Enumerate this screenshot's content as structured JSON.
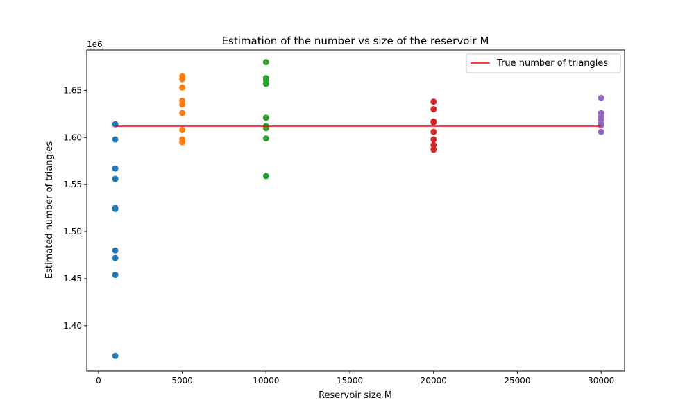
{
  "chart_data": {
    "type": "scatter",
    "title": "Estimation of the number vs size of the reservoir M",
    "xlabel": "Reservoir size M",
    "ylabel": "Estimated number of triangles",
    "y_offset_label": "1e6",
    "xlim": [
      -700,
      31400
    ],
    "ylim": [
      1.352,
      1.693
    ],
    "x_ticks": [
      0,
      5000,
      10000,
      15000,
      20000,
      25000,
      30000
    ],
    "x_tick_labels": [
      "0",
      "5000",
      "10000",
      "15000",
      "20000",
      "25000",
      "30000"
    ],
    "y_ticks": [
      1.4,
      1.45,
      1.5,
      1.55,
      1.6,
      1.65
    ],
    "y_tick_labels": [
      "1.40",
      "1.45",
      "1.50",
      "1.55",
      "1.60",
      "1.65"
    ],
    "grid": false,
    "legend_placement": "top-right",
    "series": [
      {
        "x": 1000,
        "color": "#1f77b4",
        "values": [
          1.614,
          1.598,
          1.567,
          1.556,
          1.525,
          1.524,
          1.48,
          1.472,
          1.454,
          1.368
        ]
      },
      {
        "x": 5000,
        "color": "#ff7f0e",
        "values": [
          1.665,
          1.662,
          1.653,
          1.639,
          1.635,
          1.626,
          1.608,
          1.598,
          1.595
        ]
      },
      {
        "x": 10000,
        "color": "#2ca02c",
        "values": [
          1.68,
          1.663,
          1.661,
          1.657,
          1.621,
          1.612,
          1.61,
          1.599,
          1.559
        ]
      },
      {
        "x": 20000,
        "color": "#d62728",
        "values": [
          1.638,
          1.63,
          1.617,
          1.616,
          1.606,
          1.598,
          1.592,
          1.587
        ]
      },
      {
        "x": 30000,
        "color": "#9467bd",
        "values": [
          1.642,
          1.626,
          1.622,
          1.619,
          1.615,
          1.613,
          1.606
        ]
      }
    ],
    "reference_line": {
      "label": "True number of triangles",
      "value": 1.612,
      "x_range": [
        1000,
        30000
      ],
      "color": "#ff0000"
    }
  }
}
